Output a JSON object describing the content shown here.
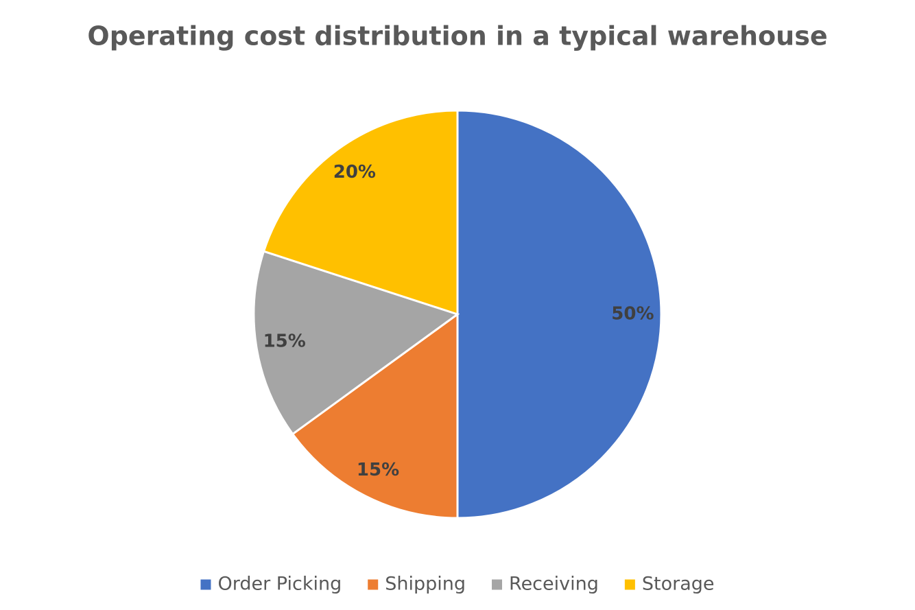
{
  "chart_data": {
    "type": "pie",
    "title": "Operating cost distribution in a typical warehouse",
    "categories": [
      "Order Picking",
      "Shipping",
      "Receiving",
      "Storage"
    ],
    "values": [
      50,
      15,
      15,
      20
    ],
    "value_labels": [
      "50%",
      "15%",
      "15%",
      "20%"
    ],
    "colors": [
      "#4472c4",
      "#ed7d31",
      "#a5a5a5",
      "#ffc000"
    ],
    "legend": "bottom"
  }
}
